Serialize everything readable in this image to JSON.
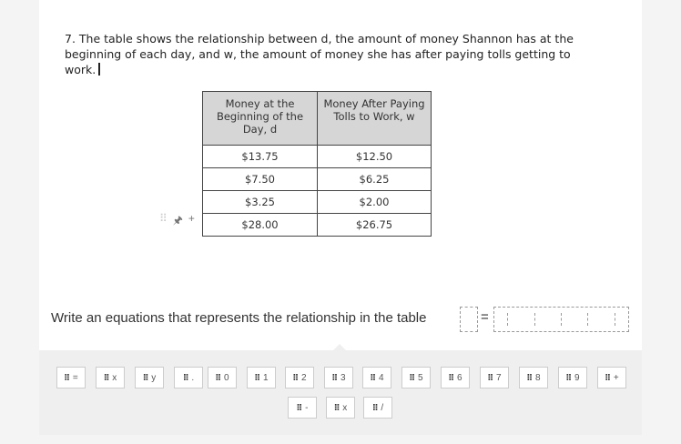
{
  "question": {
    "text": "7. The table shows the relationship between d, the amount of money Shannon has at the beginning of each day, and w, the amount of money she has after paying tolls getting to work."
  },
  "table": {
    "headers": [
      "Money at the Beginning of the Day, d",
      "Money After Paying Tolls to Work, w"
    ],
    "rows": [
      [
        "$13.75",
        "$12.50"
      ],
      [
        "$7.50",
        "$6.25"
      ],
      [
        "$3.25",
        "$2.00"
      ],
      [
        "$28.00",
        "$26.75"
      ]
    ]
  },
  "row_tools": {
    "drag": "⠿",
    "pin": "🖈",
    "add": "+"
  },
  "prompt": "Write an equations that represents the relationship in the table",
  "answer": {
    "equals": "="
  },
  "tiles": [
    "=",
    "x",
    "y",
    ".",
    "0",
    "1",
    "2",
    "3",
    "4",
    "5",
    "6",
    "7",
    "8",
    "9",
    "+",
    "-",
    "x",
    "/"
  ],
  "tile_grip": "⠿"
}
